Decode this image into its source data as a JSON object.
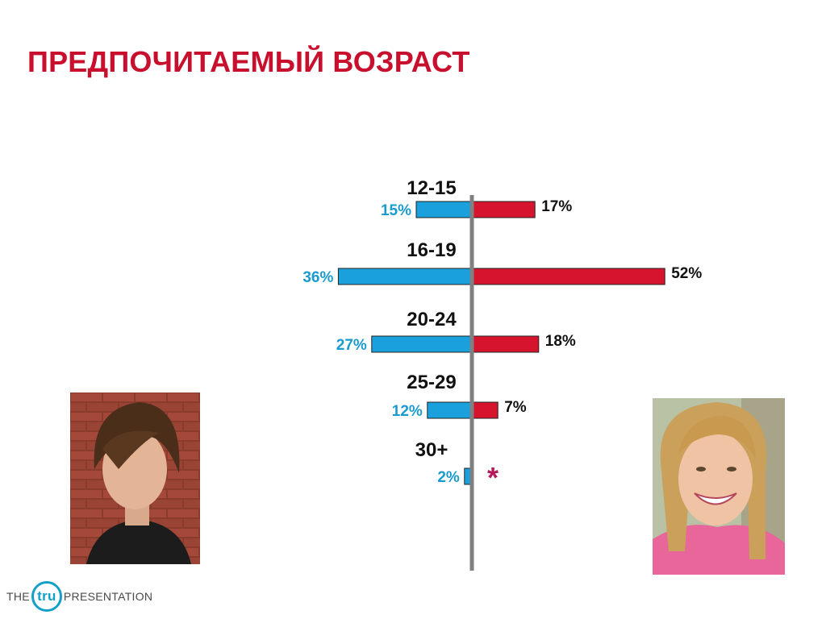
{
  "title": "ПРЕДПОЧИТАЕМЫЙ ВОЗРАСТ",
  "colors": {
    "title": "#c8102e",
    "left_series": "#1aa0dc",
    "right_series": "#d7142e",
    "axis": "#808080",
    "left_labels": "#1a9bd0",
    "brand": "#13a0c8"
  },
  "chart_data": {
    "type": "bar",
    "orientation": "diverging-horizontal",
    "categories": [
      "12-15",
      "16-19",
      "20-24",
      "25-29",
      "30+"
    ],
    "series": [
      {
        "values": [
          15,
          36,
          27,
          12,
          2
        ],
        "labels": [
          "15%",
          "36%",
          "27%",
          "12%",
          "2%"
        ]
      },
      {
        "values": [
          17,
          52,
          18,
          7,
          null
        ],
        "labels": [
          "17%",
          "52%",
          "18%",
          "7%",
          "*"
        ]
      }
    ]
  },
  "photos": {
    "left": "boy-photo",
    "right": "girl-photo"
  },
  "footer": {
    "prefix": "THE",
    "logo": "tru",
    "suffix": "PRESENTATION"
  }
}
